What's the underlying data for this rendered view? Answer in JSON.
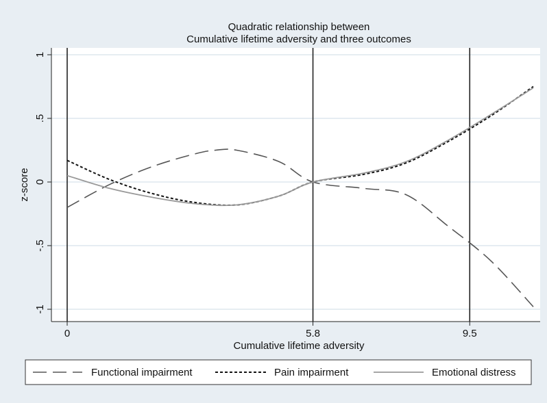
{
  "chart_data": {
    "type": "line",
    "title": [
      "Quadratic relationship between",
      "Cumulative lifetime adversity and three outcomes"
    ],
    "xlabel": "Cumulative lifetime adversity",
    "ylabel": "z-score",
    "xlim": [
      0,
      11
    ],
    "ylim": [
      -1.05,
      1.05
    ],
    "x_tick_values": [
      0,
      5.8,
      9.5
    ],
    "x_tick_labels": [
      "0",
      "5.8",
      "9.5"
    ],
    "y_tick_values": [
      -1,
      -0.5,
      0,
      0.5,
      1
    ],
    "y_tick_labels": [
      "-1",
      "-.5",
      "0",
      ".5",
      "1"
    ],
    "vertical_reference_lines": [
      0,
      5.8,
      9.5
    ],
    "grid": "horizontal",
    "legend_position": "bottom",
    "colors": {
      "background": "#e8eef3",
      "plot_background": "#ffffff",
      "grid": "#dde7ee",
      "axis": "#222222",
      "functional_impairment": "#555555",
      "pain_impairment": "#111111",
      "emotional_distress": "#999999"
    },
    "series": [
      {
        "name": "Functional impairment",
        "line_style": "long-dash",
        "x": [
          0,
          1,
          2,
          3,
          3.5,
          4,
          5,
          5.8,
          7,
          8,
          9,
          10,
          11
        ],
        "y": [
          -0.2,
          -0.02,
          0.12,
          0.22,
          0.25,
          0.25,
          0.16,
          0.0,
          -0.05,
          -0.1,
          -0.35,
          -0.62,
          -0.98
        ]
      },
      {
        "name": "Pain impairment",
        "line_style": "short-dash",
        "x": [
          0,
          1,
          2,
          3,
          4,
          5,
          5.8,
          7,
          8,
          9,
          10,
          11
        ],
        "y": [
          0.17,
          0.02,
          -0.09,
          -0.16,
          -0.18,
          -0.11,
          0.0,
          0.06,
          0.15,
          0.32,
          0.52,
          0.75
        ]
      },
      {
        "name": "Emotional distress",
        "line_style": "solid",
        "x": [
          0,
          1,
          2,
          3,
          4,
          5,
          5.8,
          7,
          8,
          9,
          10,
          11
        ],
        "y": [
          0.05,
          -0.05,
          -0.12,
          -0.17,
          -0.18,
          -0.11,
          0.0,
          0.07,
          0.16,
          0.33,
          0.53,
          0.74
        ]
      }
    ]
  }
}
